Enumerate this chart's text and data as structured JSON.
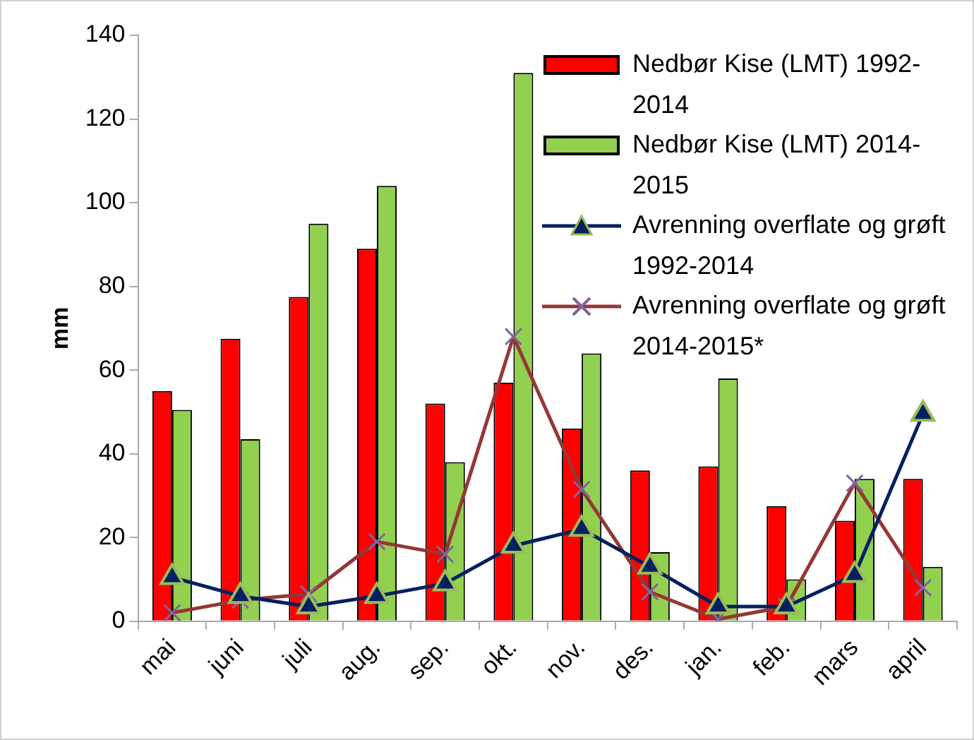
{
  "chart_data": {
    "type": "bar",
    "ylabel": "mm",
    "categories": [
      "mai",
      "juni",
      "juli",
      "aug.",
      "sep.",
      "okt.",
      "nov.",
      "des.",
      "jan.",
      "feb.",
      "mars",
      "april"
    ],
    "ylim": [
      0,
      140
    ],
    "yticks": [
      0,
      20,
      40,
      60,
      80,
      100,
      120,
      140
    ],
    "grid": false,
    "legend": "top right",
    "series": [
      {
        "name": "Nedbør Kise (LMT) 1992-2014",
        "color": "#ff0000",
        "values": [
          55,
          67.5,
          77.5,
          89,
          52,
          57,
          46,
          36,
          37,
          27.5,
          24,
          34
        ]
      },
      {
        "name": "Nedbør Kise (LMT) 2014-2015",
        "color": "#92d050",
        "values": [
          50.5,
          43.5,
          95,
          104,
          38,
          131,
          64,
          16.5,
          58,
          10,
          34,
          13
        ]
      },
      {
        "name": "Avrenning overflate og grøft 1992-2014",
        "type": "line",
        "marker": "triangle",
        "color": "#002060",
        "values": [
          10.5,
          6,
          3.5,
          6,
          9,
          18,
          22,
          13,
          3.5,
          3.5,
          11,
          49.5
        ]
      },
      {
        "name": "Avrenning overflate og grøft 2014-2015*",
        "type": "line",
        "marker": "cross",
        "color": "#953735",
        "values": [
          2,
          5,
          6.5,
          19,
          16,
          68,
          31.5,
          7,
          0.5,
          3.5,
          33,
          8
        ]
      }
    ]
  }
}
